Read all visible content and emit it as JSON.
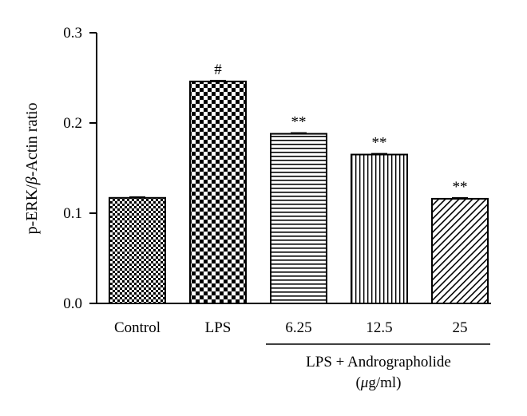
{
  "chart_data": {
    "type": "bar",
    "ylabel_pre": "p-ERK/",
    "ylabel_beta": "β",
    "ylabel_post": "-Actin ratio",
    "ylim": [
      0,
      0.3
    ],
    "yticks": [
      "0.0",
      "0.1",
      "0.2",
      "0.3"
    ],
    "categories": [
      "Control",
      "LPS",
      "6.25",
      "12.5",
      "25"
    ],
    "values": [
      0.117,
      0.246,
      0.188,
      0.165,
      0.116
    ],
    "errors": [
      0.001,
      0.001,
      0.001,
      0.001,
      0.001
    ],
    "annotations": [
      "",
      "#",
      "**",
      "**",
      "**"
    ],
    "patterns": [
      "fine-checker",
      "coarse-checker",
      "horizontal-lines",
      "vertical-lines",
      "diagonal-lines"
    ],
    "group_label_line1": "LPS + Andrographolide",
    "group_label_line2_open": "(",
    "group_label_line2_mu": "μ",
    "group_label_line2_rest": "g/ml)",
    "colors": {
      "bar_fill": "#ffffff",
      "ink": "#000000"
    }
  }
}
